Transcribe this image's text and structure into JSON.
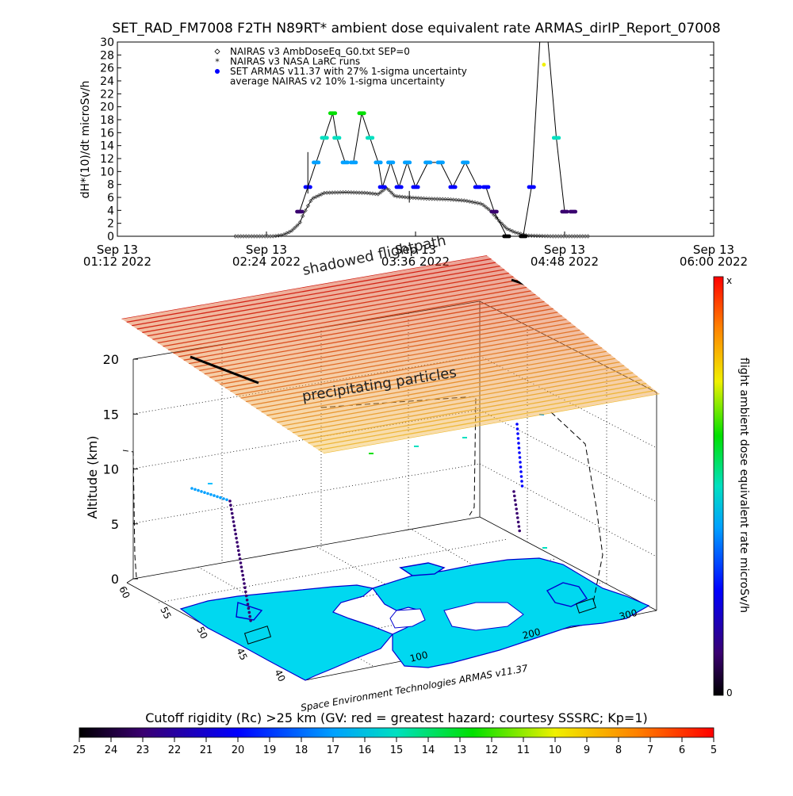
{
  "header": {
    "title": "SET_RAD_FM7008  F2TH N89RT* ambient dose equivalent rate ARMAS_dirIP_Report_07008"
  },
  "chart_data": [
    {
      "type": "line",
      "ylabel": "dH*(10)/dt microSv/h",
      "ylim": [
        0,
        30
      ],
      "yticks": [
        0,
        2,
        4,
        6,
        8,
        10,
        12,
        14,
        16,
        18,
        20,
        22,
        24,
        26,
        28,
        30
      ],
      "xlim_minutes": [
        0,
        288
      ],
      "xticks": [
        {
          "t": 0,
          "line1": "Sep 13",
          "line2": "01:12 2022"
        },
        {
          "t": 72,
          "line1": "Sep 13",
          "line2": "02:24 2022"
        },
        {
          "t": 144,
          "line1": "Sep 13",
          "line2": "03:36 2022"
        },
        {
          "t": 216,
          "line1": "Sep 13",
          "line2": "04:48 2022"
        },
        {
          "t": 288,
          "line1": "Sep 13",
          "line2": "06:00 2022"
        }
      ],
      "legend": [
        {
          "label": "NAIRAS v3 AmbDoseEq_G0.txt SEP=0",
          "marker": "diamond-open",
          "color": "#000000"
        },
        {
          "label": "NAIRAS v3 NASA LaRC runs",
          "marker": "asterisk",
          "color": "#000000"
        },
        {
          "label": "SET ARMAS v11.37 with 27% 1-sigma uncertainty",
          "marker": "dot",
          "color": "#0000ff"
        },
        {
          "label": "average NAIRAS v2 10% 1-sigma uncertainty",
          "marker": "none",
          "color": "#000000"
        }
      ],
      "series": [
        {
          "name": "NAIRAS v3 AmbDoseEq_G0.txt SEP=0",
          "x": [
            57,
            66,
            75,
            80,
            84,
            88,
            90,
            94,
            100,
            110,
            120,
            126,
            130,
            134,
            140,
            150,
            160,
            168,
            176,
            180,
            184,
            188,
            192,
            198,
            210,
            222,
            228
          ],
          "y": [
            0,
            0,
            0,
            0.2,
            0.8,
            2,
            3.5,
            5.8,
            6.7,
            6.8,
            6.7,
            6.5,
            7.5,
            6.2,
            6.0,
            5.8,
            5.7,
            5.5,
            5.0,
            4.0,
            2.5,
            1.2,
            0.6,
            0.1,
            0,
            0,
            0
          ]
        },
        {
          "name": "SET ARMAS v11.37 with 27% 1-sigma uncertainty",
          "x": [
            88,
            92,
            96,
            100,
            104,
            106,
            110,
            114,
            118,
            122,
            126,
            128,
            132,
            136,
            140,
            144,
            150,
            156,
            162,
            168,
            174,
            178,
            182,
            188,
            196,
            200,
            204,
            208,
            212,
            216,
            220
          ],
          "y": [
            3.8,
            7.6,
            11.4,
            15.2,
            19.0,
            15.2,
            11.4,
            11.4,
            19.0,
            15.2,
            11.4,
            7.6,
            11.4,
            7.6,
            11.4,
            7.6,
            11.4,
            11.4,
            7.6,
            11.4,
            7.6,
            7.6,
            3.8,
            0,
            0,
            7.6,
            30,
            30,
            15.2,
            3.8,
            3.8
          ]
        }
      ]
    },
    {
      "type": "scatter",
      "zlabel": "Altitude (km)",
      "zticks": [
        0,
        5,
        10,
        15,
        20
      ],
      "xticks": [
        100,
        200,
        300
      ],
      "yticks": [
        40,
        45,
        50,
        55,
        60
      ],
      "annotations": [
        "shadowed flightpath",
        "precipitating particles"
      ],
      "credit": "Space Environment Technologies ARMAS v11.37"
    }
  ],
  "colorbar_right": {
    "label": "flight ambient dose equivalent rate microSv/h",
    "top_label": "x",
    "bottom_label": "0"
  },
  "colorbar_bottom": {
    "title": "Cutoff rigidity (Rc) >25 km (GV: red = greatest hazard; courtesy SSSRC; Kp=1)",
    "ticks": [
      "25",
      "24",
      "23",
      "22",
      "21",
      "20",
      "19",
      "18",
      "17",
      "16",
      "15",
      "14",
      "13",
      "12",
      "11",
      "10",
      "9",
      "8",
      "7",
      "6",
      "5"
    ]
  },
  "colors": {
    "dose_scale": [
      "#000000",
      "#3a0070",
      "#0000ff",
      "#00a0ff",
      "#00e0c0",
      "#00e000",
      "#f0f000",
      "#ff8000",
      "#ff0000"
    ],
    "map_land": "#00d8f0",
    "map_coast": "#0000d0"
  }
}
